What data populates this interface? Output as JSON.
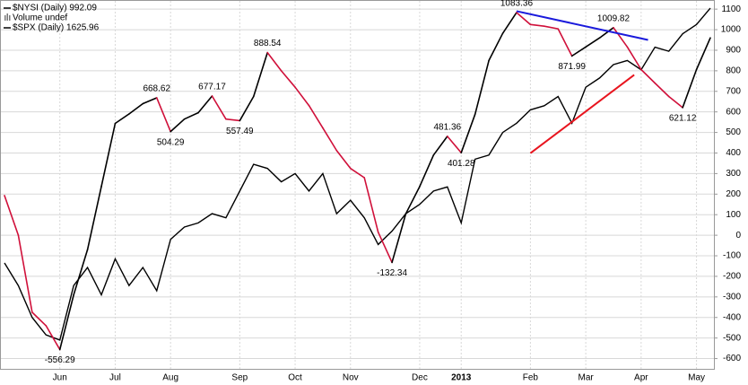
{
  "chart_data": {
    "type": "line",
    "legend": [
      {
        "label": "$NYSI (Daily) 992.09",
        "color": "#000000"
      },
      {
        "label": "Volume undef",
        "color": "#777777"
      },
      {
        "label": "$SPX (Daily) 1625.96",
        "color": "#000000"
      }
    ],
    "categories": [
      null,
      null,
      null,
      null,
      "Jun",
      null,
      null,
      null,
      "Jul",
      null,
      null,
      null,
      "Aug",
      null,
      null,
      null,
      null,
      "Sep",
      null,
      null,
      null,
      "Oct",
      null,
      null,
      null,
      "Nov",
      null,
      null,
      null,
      null,
      "Dec",
      null,
      null,
      "2013",
      null,
      null,
      null,
      null,
      "Feb",
      null,
      null,
      null,
      "Mar",
      null,
      null,
      null,
      "Apr",
      null,
      null,
      null,
      "May",
      null
    ],
    "series": [
      {
        "name": "$NYSI",
        "color": "#000000",
        "down_color": "#d0103a",
        "values": [
          193,
          0,
          -375,
          -440,
          -556.29,
          -290,
          -70,
          237,
          544,
          590,
          640,
          668.62,
          504.29,
          565,
          596,
          677.17,
          565,
          557.49,
          675,
          888.54,
          800,
          720,
          631,
          522,
          412,
          325,
          280,
          15,
          -132.34,
          105,
          237,
          390,
          481.36,
          401.28,
          588,
          850,
          982,
          1083.36,
          1025,
          1017,
          1004,
          871.99,
          916,
          960,
          1009.82,
          916,
          806,
          740,
          675,
          621.12,
          806,
          960
        ],
        "value_labels": [
          null,
          null,
          null,
          null,
          "-556.29",
          null,
          null,
          null,
          null,
          null,
          null,
          "668.62",
          "504.29",
          null,
          null,
          "677.17",
          null,
          "557.49",
          null,
          "888.54",
          null,
          null,
          null,
          null,
          null,
          null,
          null,
          null,
          "-132.34",
          null,
          null,
          null,
          "481.36",
          "401.28",
          null,
          null,
          null,
          "1083.36",
          null,
          null,
          null,
          "871.99",
          null,
          null,
          "1009.82",
          null,
          null,
          null,
          null,
          "621.12",
          null,
          null
        ]
      },
      {
        "name": "$SPX",
        "color": "#000000",
        "values": [
          -135,
          -245,
          -400,
          -485,
          -510,
          -245,
          -157,
          -290,
          -115,
          -245,
          -157,
          -270,
          -20,
          40,
          60,
          105,
          85,
          215,
          345,
          325,
          260,
          300,
          215,
          300,
          105,
          170,
          85,
          -45,
          20,
          105,
          150,
          215,
          235,
          60,
          370,
          390,
          500,
          545,
          610,
          630,
          675,
          545,
          720,
          765,
          830,
          850,
          805,
          915,
          895,
          980,
          1025,
          1105
        ]
      }
    ],
    "trendlines": [
      {
        "color": "#1a1adc",
        "start": [
          37,
          1090
        ],
        "end": [
          46.5,
          950
        ]
      },
      {
        "color": "#e8141e",
        "start": [
          38,
          399
        ],
        "end": [
          45.5,
          780
        ]
      }
    ],
    "ylim": [
      -650,
      1140
    ],
    "yticks": [
      1100,
      1000,
      900,
      800,
      700,
      600,
      500,
      400,
      300,
      200,
      100,
      0,
      -100,
      -200,
      -300,
      -400,
      -500,
      -600
    ],
    "grid": true
  }
}
